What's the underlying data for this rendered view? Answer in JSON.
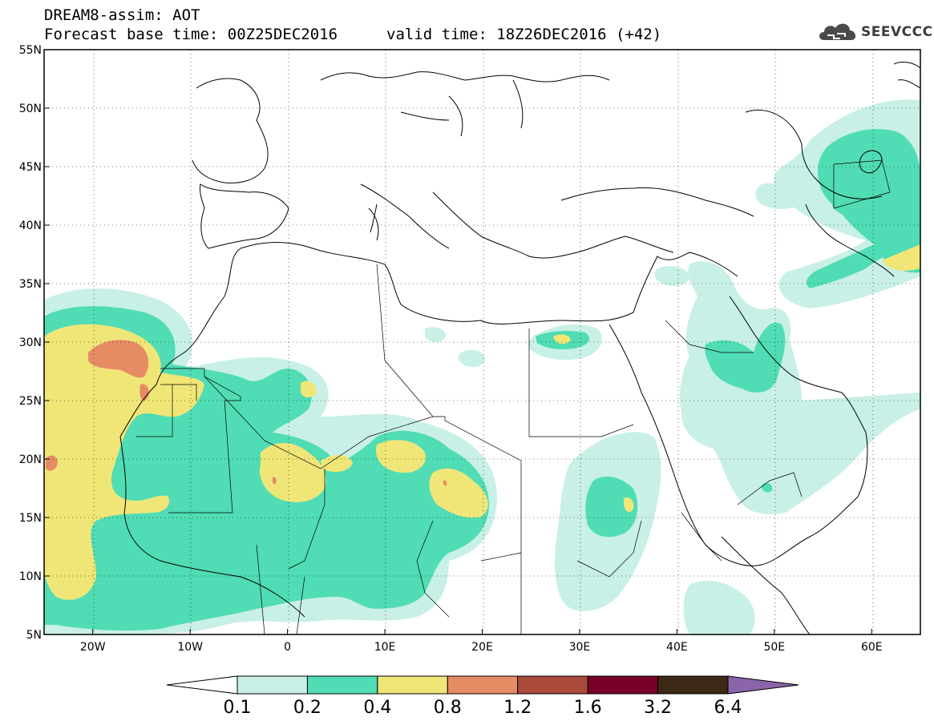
{
  "header": {
    "title": "DREAM8-assim: AOT",
    "base_time": "Forecast base time: 00Z25DEC2016",
    "valid_time": "valid time: 18Z26DEC2016 (+42)",
    "logo_text": "SEEVCCC",
    "logo_icon": "cloud-icon"
  },
  "map": {
    "lon_range": [
      -25,
      65
    ],
    "lat_range": [
      5,
      55
    ],
    "lat_labels": [
      "55N",
      "50N",
      "45N",
      "40N",
      "35N",
      "30N",
      "25N",
      "20N",
      "15N",
      "10N",
      "5N"
    ],
    "lat_values": [
      55,
      50,
      45,
      40,
      35,
      30,
      25,
      20,
      15,
      10,
      5
    ],
    "lon_labels": [
      "20W",
      "10W",
      "0",
      "10E",
      "20E",
      "30E",
      "40E",
      "50E",
      "60E"
    ],
    "lon_values": [
      -20,
      -10,
      0,
      10,
      20,
      30,
      40,
      50,
      60
    ],
    "grid": "dotted"
  },
  "colorbar": {
    "levels": [
      "0.1",
      "0.2",
      "0.4",
      "0.8",
      "1.2",
      "1.6",
      "3.2",
      "6.4"
    ],
    "colors": [
      "#ffffff",
      "#c8f0e6",
      "#50dcb4",
      "#f0e678",
      "#e68c64",
      "#aa4b3c",
      "#780028",
      "#3c2814",
      "#8c64aa"
    ]
  }
}
